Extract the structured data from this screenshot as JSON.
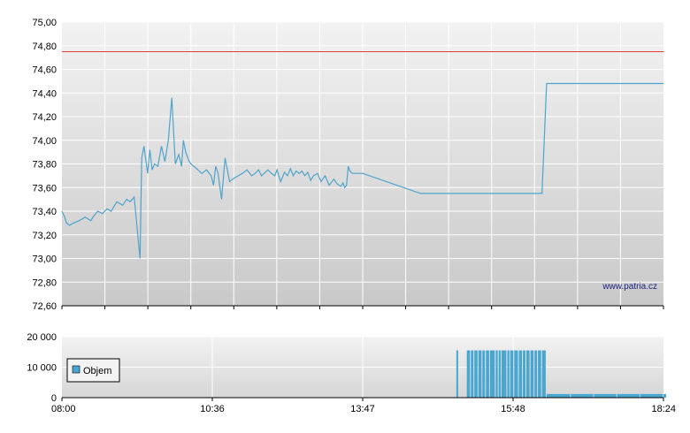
{
  "watermark": "www.patria.cz",
  "colors": {
    "price_line": "#4fa3cc",
    "reference_line": "#e53935",
    "volume_bar": "#49a6d0"
  },
  "chart_data": [
    {
      "type": "line",
      "title": "",
      "xlabel": "",
      "ylabel": "",
      "ylim": [
        72.6,
        75.0
      ],
      "y_ticks": [
        "75,00",
        "74,80",
        "74,60",
        "74,40",
        "74,20",
        "74,00",
        "73,80",
        "73,60",
        "73,40",
        "73,20",
        "73,00",
        "72,80",
        "72,60"
      ],
      "reference_line": 74.75,
      "grid": true,
      "series": [
        {
          "x": [
            8.0,
            8.04,
            8.08,
            8.13,
            8.2,
            8.3,
            8.4,
            8.5,
            8.55,
            8.62,
            8.7,
            8.78,
            8.85,
            8.95,
            9.05,
            9.12,
            9.18,
            9.25,
            9.35,
            9.38,
            9.42,
            9.48,
            9.52,
            9.56,
            9.6,
            9.66,
            9.72,
            9.78,
            9.84,
            9.9,
            9.96,
            10.02,
            10.07,
            10.1,
            10.14,
            10.19,
            10.23,
            10.28,
            10.35,
            10.42,
            10.5,
            10.58,
            10.62,
            10.66,
            10.7,
            10.76,
            10.82,
            10.9,
            10.98,
            11.05,
            11.12,
            11.2,
            11.28,
            11.34,
            11.4,
            11.45,
            11.5,
            11.56,
            11.62,
            11.68,
            11.72,
            11.78,
            11.85,
            11.9,
            11.95,
            12.0,
            12.05,
            12.1,
            12.15,
            12.2,
            12.25,
            12.3,
            12.35,
            12.42,
            12.48,
            12.55,
            12.62,
            12.7,
            12.76,
            12.82,
            12.86,
            12.89,
            12.92,
            12.95,
            12.98,
            13.02,
            13.2,
            14.2,
            14.8,
            16.3,
            16.38,
            18.4
          ],
          "values": [
            73.4,
            73.36,
            73.3,
            73.28,
            73.3,
            73.32,
            73.35,
            73.32,
            73.36,
            73.4,
            73.38,
            73.42,
            73.4,
            73.48,
            73.45,
            73.5,
            73.48,
            73.52,
            73.0,
            73.85,
            73.95,
            73.72,
            73.92,
            73.75,
            73.8,
            73.78,
            73.95,
            73.82,
            74.0,
            74.36,
            73.8,
            73.88,
            73.78,
            74.0,
            73.9,
            73.83,
            73.8,
            73.78,
            73.75,
            73.72,
            73.75,
            73.7,
            73.62,
            73.78,
            73.72,
            73.5,
            73.85,
            73.65,
            73.68,
            73.7,
            73.72,
            73.75,
            73.7,
            73.72,
            73.75,
            73.7,
            73.72,
            73.75,
            73.72,
            73.7,
            73.75,
            73.65,
            73.73,
            73.7,
            73.76,
            73.7,
            73.74,
            73.72,
            73.74,
            73.7,
            73.73,
            73.66,
            73.7,
            73.72,
            73.65,
            73.7,
            73.62,
            73.67,
            73.63,
            73.61,
            73.64,
            73.6,
            73.62,
            73.78,
            73.74,
            73.72,
            73.72,
            73.55,
            73.55,
            73.55,
            74.48,
            74.48
          ]
        }
      ]
    },
    {
      "type": "bar",
      "title": "",
      "xlabel": "",
      "ylabel": "",
      "ylim": [
        0,
        20000
      ],
      "y_ticks": [
        "20 000",
        "10 000",
        "0"
      ],
      "x_ticks": [
        "08:00",
        "10:36",
        "13:47",
        "15:48",
        "18:24"
      ],
      "xlim": [
        8.0,
        18.4
      ],
      "grid": true,
      "legend": {
        "position": "bottom-left",
        "label": "Objem"
      },
      "series": [
        {
          "name": "Objem",
          "x": [
            14.82,
            15.0,
            15.07,
            15.13,
            15.2,
            15.27,
            15.33,
            15.4,
            15.5,
            15.55,
            15.6,
            15.7,
            15.75,
            15.82,
            15.9,
            15.97,
            16.03,
            16.1,
            16.17,
            16.23,
            16.3,
            16.38,
            16.8,
            17.2,
            17.6,
            18.0,
            18.4
          ],
          "values": [
            15500,
            15500,
            15500,
            15500,
            15500,
            15500,
            15500,
            15500,
            15500,
            15500,
            15500,
            15500,
            15500,
            15500,
            15500,
            15500,
            15500,
            15500,
            15500,
            15500,
            15500,
            1200,
            1200,
            1200,
            1200,
            1200,
            1200
          ]
        }
      ]
    }
  ]
}
